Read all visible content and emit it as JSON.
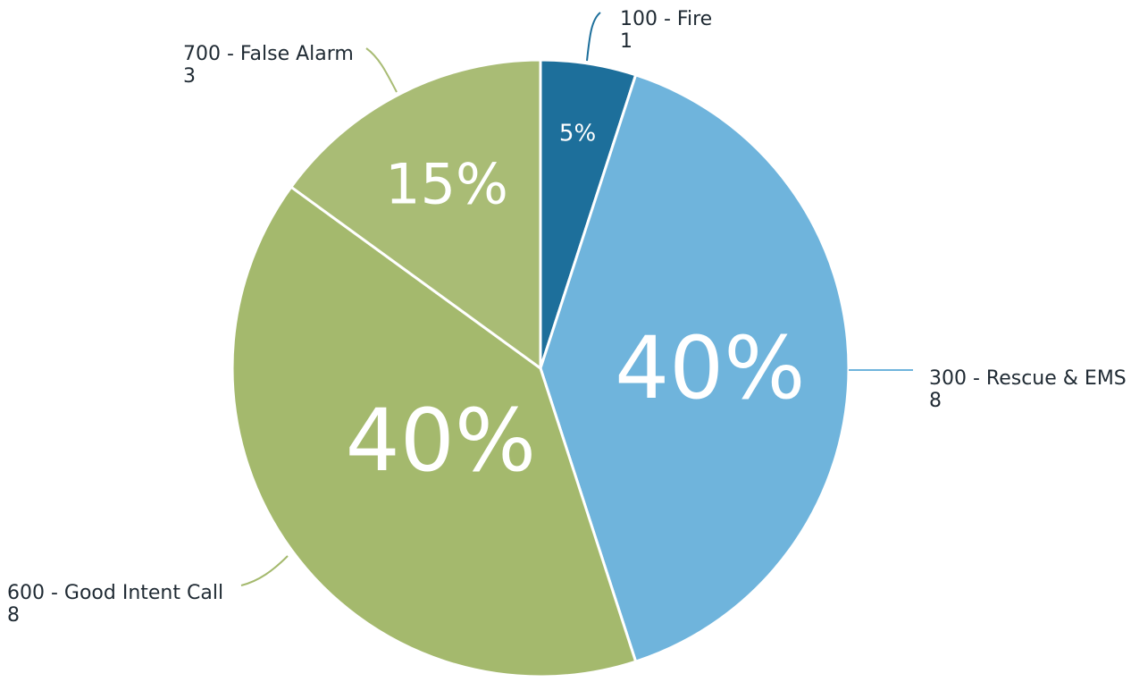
{
  "chart_data": {
    "type": "pie",
    "title": "",
    "slices": [
      {
        "label": "100 - Fire",
        "value": 1,
        "percent_label": "5%",
        "color": "#1d6f9b"
      },
      {
        "label": "300 - Rescue & EMS",
        "value": 8,
        "percent_label": "40%",
        "color": "#6fb4dc"
      },
      {
        "label": "600 - Good Intent Call",
        "value": 8,
        "percent_label": "40%",
        "color": "#a4b96d"
      },
      {
        "label": "700 - False Alarm",
        "value": 3,
        "percent_label": "15%",
        "color": "#a9bc75"
      }
    ],
    "start_angle_deg": 0,
    "direction": "clockwise"
  }
}
